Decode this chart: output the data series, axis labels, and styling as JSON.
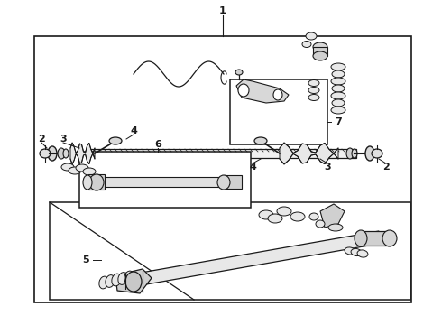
{
  "bg_color": "#ffffff",
  "lc": "#1a1a1a",
  "fig_width": 4.9,
  "fig_height": 3.6,
  "dpi": 100
}
